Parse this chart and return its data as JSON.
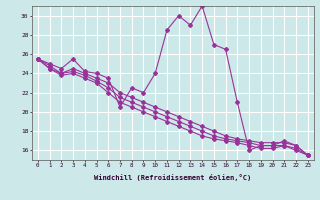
{
  "xlabel": "Windchill (Refroidissement éolien,°C)",
  "background_color": "#cce8e8",
  "line_color": "#993399",
  "grid_color": "#ffffff",
  "xmin": -0.5,
  "xmax": 23.5,
  "ymin": 15.0,
  "ymax": 31.0,
  "yticks": [
    16,
    18,
    20,
    22,
    24,
    26,
    28,
    30
  ],
  "xticks": [
    0,
    1,
    2,
    3,
    4,
    5,
    6,
    7,
    8,
    9,
    10,
    11,
    12,
    13,
    14,
    15,
    16,
    17,
    18,
    19,
    20,
    21,
    22,
    23
  ],
  "series": [
    [
      25.5,
      25.0,
      24.5,
      25.5,
      24.2,
      24.0,
      23.5,
      20.5,
      22.5,
      22.0,
      24.0,
      28.5,
      30.0,
      29.0,
      31.0,
      27.0,
      26.5,
      21.0,
      16.0,
      16.5,
      16.5,
      17.0,
      16.5,
      15.5
    ],
    [
      25.5,
      24.8,
      24.0,
      24.5,
      24.0,
      23.5,
      23.0,
      22.0,
      21.5,
      21.0,
      20.5,
      20.0,
      19.5,
      19.0,
      18.5,
      18.0,
      17.5,
      17.2,
      17.0,
      16.8,
      16.8,
      16.8,
      16.5,
      15.5
    ],
    [
      25.5,
      24.5,
      24.0,
      24.2,
      23.8,
      23.2,
      22.5,
      21.5,
      21.0,
      20.5,
      20.0,
      19.5,
      19.0,
      18.5,
      18.0,
      17.5,
      17.2,
      17.0,
      16.8,
      16.5,
      16.5,
      16.5,
      16.2,
      15.5
    ],
    [
      25.5,
      24.5,
      23.8,
      24.0,
      23.5,
      23.0,
      22.0,
      21.0,
      20.5,
      20.0,
      19.5,
      19.0,
      18.5,
      18.0,
      17.5,
      17.2,
      17.0,
      16.8,
      16.5,
      16.2,
      16.2,
      16.5,
      16.0,
      15.5
    ]
  ]
}
